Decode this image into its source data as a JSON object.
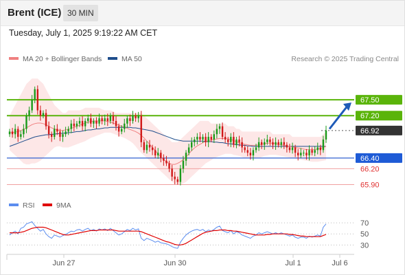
{
  "header": {
    "title": "Brent (ICE)",
    "timeframe": "30 MIN"
  },
  "datetime": "Tuesday, July 1, 2025 9:19:22 AM CET",
  "legend": {
    "ma20": "MA 20 + Bollinger Bands",
    "ma50": "MA 50",
    "ma20_color": "#f08080",
    "ma50_color": "#1f4e8c",
    "credit": "Research © 2025 Trading Central"
  },
  "rsi_legend": {
    "rsi": "RSI",
    "ma9": "9MA",
    "rsi_color": "#5b8def",
    "ma9_color": "#e00000"
  },
  "chart_data": [
    {
      "type": "candlestick",
      "title": "Brent (ICE)",
      "ylim": [
        65.75,
        68.15
      ],
      "x_ticks": [
        "Jun 27",
        "Jun 30",
        "Jul 1",
        "Jul 6"
      ],
      "last_price": 66.92,
      "close": [
        66.9,
        66.85,
        66.95,
        66.8,
        66.85,
        66.95,
        67.2,
        67.3,
        67.5,
        67.7,
        67.3,
        67.2,
        67.25,
        67.0,
        66.85,
        66.8,
        66.95,
        66.9,
        66.8,
        66.85,
        66.9,
        66.95,
        67.05,
        67.0,
        67.05,
        67.1,
        67.0,
        67.1,
        67.15,
        67.05,
        67.1,
        67.05,
        67.15,
        67.1,
        67.15,
        67.1,
        67.2,
        67.1,
        67.0,
        66.9,
        66.95,
        67.05,
        67.15,
        67.1,
        67.2,
        67.15,
        67.2,
        66.7,
        66.55,
        66.65,
        66.6,
        66.55,
        66.45,
        66.5,
        66.4,
        66.35,
        66.3,
        66.2,
        66.05,
        66.0,
        65.95,
        66.2,
        66.35,
        66.5,
        66.6,
        66.7,
        66.75,
        66.8,
        66.75,
        66.8,
        66.7,
        66.8,
        66.75,
        66.85,
        66.95,
        67.0,
        66.8,
        66.75,
        66.7,
        66.8,
        66.65,
        66.75,
        66.7,
        66.6,
        66.55,
        66.5,
        66.45,
        66.55,
        66.6,
        66.7,
        66.65,
        66.7,
        66.75,
        66.7,
        66.65,
        66.7,
        66.65,
        66.7,
        66.65,
        66.6,
        66.55,
        66.6,
        66.5,
        66.45,
        66.5,
        66.5,
        66.45,
        66.55,
        66.5,
        66.55,
        66.6,
        66.55,
        66.75,
        66.92
      ],
      "ma20": [
        66.88,
        66.88,
        66.89,
        66.9,
        66.92,
        66.94,
        66.97,
        67.0,
        67.03,
        67.05,
        67.06,
        67.06,
        67.05,
        67.03,
        67.0,
        66.97,
        66.95,
        66.93,
        66.92,
        66.92,
        66.93,
        66.94,
        66.96,
        66.98,
        67.0,
        67.02,
        67.04,
        67.06,
        67.08,
        67.09,
        67.1,
        67.1,
        67.1,
        67.1,
        67.1,
        67.09,
        67.08,
        67.06,
        67.04,
        67.02,
        67.0,
        66.98,
        66.96,
        66.94,
        66.92,
        66.9,
        66.87,
        66.83,
        66.78,
        66.72,
        66.66,
        66.6,
        66.54,
        66.48,
        66.42,
        66.37,
        66.33,
        66.3,
        66.28,
        66.28,
        66.3,
        66.33,
        66.37,
        66.42,
        66.48,
        66.54,
        66.59,
        66.63,
        66.66,
        66.69,
        66.71,
        66.73,
        66.74,
        66.75,
        66.76,
        66.77,
        66.77,
        66.77,
        66.76,
        66.75,
        66.73,
        66.71,
        66.69,
        66.67,
        66.66,
        66.65,
        66.64,
        66.64,
        66.64,
        66.65,
        66.66,
        66.67,
        66.68,
        66.68,
        66.68,
        66.67,
        66.66,
        66.65,
        66.64,
        66.63,
        66.62,
        66.61,
        66.6,
        66.59,
        66.58,
        66.57,
        66.56,
        66.56,
        66.56,
        66.56,
        66.57,
        66.58,
        66.6,
        66.62
      ],
      "bb_upper": [
        67.2,
        67.3,
        67.4,
        67.5,
        67.6,
        67.7,
        67.8,
        67.85,
        67.9,
        67.9,
        67.9,
        67.85,
        67.8,
        67.7,
        67.6,
        67.5,
        67.4,
        67.35,
        67.3,
        67.25,
        67.25,
        67.3,
        67.3,
        67.3,
        67.3,
        67.3,
        67.32,
        67.35,
        67.35,
        67.35,
        67.35,
        67.35,
        67.35,
        67.32,
        67.3,
        67.3,
        67.3,
        67.28,
        67.25,
        67.25,
        67.25,
        67.25,
        67.25,
        67.25,
        67.25,
        67.25,
        67.25,
        67.25,
        67.2,
        67.15,
        67.1,
        67.05,
        67.0,
        66.95,
        66.9,
        66.85,
        66.8,
        66.75,
        66.7,
        66.7,
        66.7,
        66.75,
        66.8,
        66.85,
        66.9,
        66.95,
        67.0,
        67.05,
        67.1,
        67.1,
        67.1,
        67.1,
        67.05,
        67.05,
        67.05,
        67.05,
        67.05,
        67.05,
        67.0,
        67.0,
        67.0,
        66.95,
        66.95,
        66.9,
        66.9,
        66.9,
        66.9,
        66.9,
        66.9,
        66.9,
        66.9,
        66.9,
        66.9,
        66.9,
        66.85,
        66.85,
        66.85,
        66.85,
        66.85,
        66.85,
        66.85,
        66.8,
        66.8,
        66.8,
        66.8,
        66.8,
        66.8,
        66.8,
        66.8,
        66.8,
        66.8,
        66.8,
        66.85,
        66.9
      ],
      "bb_lower": [
        66.55,
        66.5,
        66.45,
        66.4,
        66.35,
        66.3,
        66.28,
        66.28,
        66.3,
        66.3,
        66.32,
        66.35,
        66.4,
        66.45,
        66.5,
        66.55,
        66.6,
        66.62,
        66.62,
        66.6,
        66.6,
        66.6,
        66.62,
        66.64,
        66.66,
        66.68,
        66.7,
        66.72,
        66.75,
        66.78,
        66.8,
        66.82,
        66.84,
        66.86,
        66.88,
        66.88,
        66.88,
        66.86,
        66.84,
        66.82,
        66.8,
        66.78,
        66.75,
        66.72,
        66.68,
        66.62,
        66.55,
        66.5,
        66.45,
        66.4,
        66.35,
        66.3,
        66.25,
        66.2,
        66.15,
        66.1,
        66.05,
        66.0,
        65.95,
        65.92,
        65.9,
        65.9,
        65.92,
        65.95,
        66.0,
        66.05,
        66.1,
        66.15,
        66.2,
        66.25,
        66.3,
        66.33,
        66.36,
        66.4,
        66.42,
        66.44,
        66.46,
        66.48,
        66.48,
        66.48,
        66.46,
        66.45,
        66.44,
        66.42,
        66.4,
        66.4,
        66.4,
        66.4,
        66.4,
        66.4,
        66.42,
        66.44,
        66.45,
        66.46,
        66.46,
        66.46,
        66.45,
        66.44,
        66.43,
        66.42,
        66.41,
        66.4,
        66.39,
        66.38,
        66.37,
        66.36,
        66.35,
        66.34,
        66.33,
        66.33,
        66.33,
        66.34,
        66.35,
        66.36
      ],
      "ma50": [
        66.62,
        66.64,
        66.66,
        66.68,
        66.7,
        66.72,
        66.74,
        66.76,
        66.78,
        66.8,
        66.81,
        66.82,
        66.83,
        66.84,
        66.84,
        66.85,
        66.85,
        66.86,
        66.86,
        66.87,
        66.87,
        66.88,
        66.88,
        66.89,
        66.9,
        66.9,
        66.91,
        66.92,
        66.93,
        66.93,
        66.94,
        66.95,
        66.95,
        66.96,
        66.97,
        66.97,
        66.98,
        66.98,
        66.98,
        66.98,
        66.98,
        66.98,
        66.98,
        66.98,
        66.97,
        66.97,
        66.96,
        66.95,
        66.94,
        66.93,
        66.92,
        66.91,
        66.89,
        66.87,
        66.85,
        66.83,
        66.81,
        66.79,
        66.77,
        66.75,
        66.74,
        66.73,
        66.72,
        66.72,
        66.72,
        66.72,
        66.72,
        66.72,
        66.72,
        66.72,
        66.71,
        66.71,
        66.71,
        66.7,
        66.7,
        66.69,
        66.69,
        66.68,
        66.67,
        66.67,
        66.66,
        66.65,
        66.65,
        66.64,
        66.64,
        66.63,
        66.63,
        66.62,
        66.62,
        66.62,
        66.62,
        66.62,
        66.62,
        66.62,
        66.62,
        66.62,
        66.62,
        66.62,
        66.62,
        66.62,
        66.62,
        66.62,
        66.62,
        66.62,
        66.62,
        66.62,
        66.62,
        66.62,
        66.62,
        66.62,
        66.62,
        66.62,
        66.62,
        66.62
      ],
      "levels": [
        {
          "value": 67.5,
          "label": "67.50",
          "type": "resistance"
        },
        {
          "value": 67.2,
          "label": "67.20",
          "type": "resistance"
        },
        {
          "value": 66.92,
          "label": "66.92",
          "type": "last"
        },
        {
          "value": 66.4,
          "label": "66.40",
          "type": "pivot"
        },
        {
          "value": 66.2,
          "label": "66.20",
          "type": "support"
        },
        {
          "value": 65.9,
          "label": "65.90",
          "type": "support"
        }
      ],
      "projection": {
        "from": 66.95,
        "to": 67.5,
        "direction": "up"
      }
    },
    {
      "type": "line",
      "title": "RSI",
      "ylim": [
        18,
        80
      ],
      "y_ticks": [
        70,
        50,
        30
      ],
      "series": [
        {
          "name": "RSI",
          "values": [
            48,
            52,
            55,
            50,
            60,
            62,
            68,
            70,
            72,
            65,
            60,
            55,
            58,
            50,
            45,
            42,
            48,
            46,
            44,
            47,
            49,
            52,
            55,
            54,
            57,
            58,
            55,
            58,
            60,
            56,
            58,
            55,
            59,
            57,
            59,
            56,
            60,
            56,
            52,
            48,
            50,
            54,
            58,
            56,
            60,
            57,
            59,
            42,
            38,
            42,
            40,
            38,
            35,
            37,
            34,
            33,
            32,
            30,
            27,
            25,
            24,
            35,
            42,
            48,
            52,
            55,
            57,
            58,
            56,
            58,
            54,
            57,
            55,
            58,
            62,
            64,
            56,
            54,
            52,
            56,
            50,
            54,
            52,
            48,
            46,
            44,
            42,
            46,
            48,
            52,
            50,
            52,
            54,
            52,
            50,
            52,
            50,
            52,
            50,
            48,
            46,
            48,
            44,
            42,
            44,
            44,
            42,
            46,
            44,
            46,
            48,
            46,
            62,
            68
          ]
        },
        {
          "name": "9MA",
          "values": [
            52,
            52,
            52,
            52,
            53,
            54,
            56,
            58,
            60,
            61,
            62,
            62,
            62,
            61,
            59,
            57,
            55,
            53,
            51,
            49,
            48,
            48,
            49,
            50,
            51,
            52,
            53,
            54,
            55,
            56,
            56,
            56,
            57,
            57,
            57,
            57,
            57,
            57,
            56,
            55,
            55,
            55,
            55,
            55,
            55,
            55,
            55,
            54,
            52,
            50,
            48,
            46,
            44,
            42,
            40,
            38,
            36,
            35,
            33,
            31,
            30,
            30,
            31,
            33,
            36,
            39,
            42,
            45,
            48,
            51,
            53,
            54,
            55,
            56,
            56,
            57,
            57,
            57,
            56,
            56,
            55,
            55,
            54,
            53,
            52,
            51,
            50,
            49,
            48,
            48,
            48,
            48,
            49,
            49,
            50,
            50,
            50,
            50,
            50,
            50,
            49,
            49,
            48,
            47,
            46,
            46,
            45,
            45,
            45,
            45,
            45,
            45,
            47,
            49
          ]
        }
      ]
    }
  ]
}
